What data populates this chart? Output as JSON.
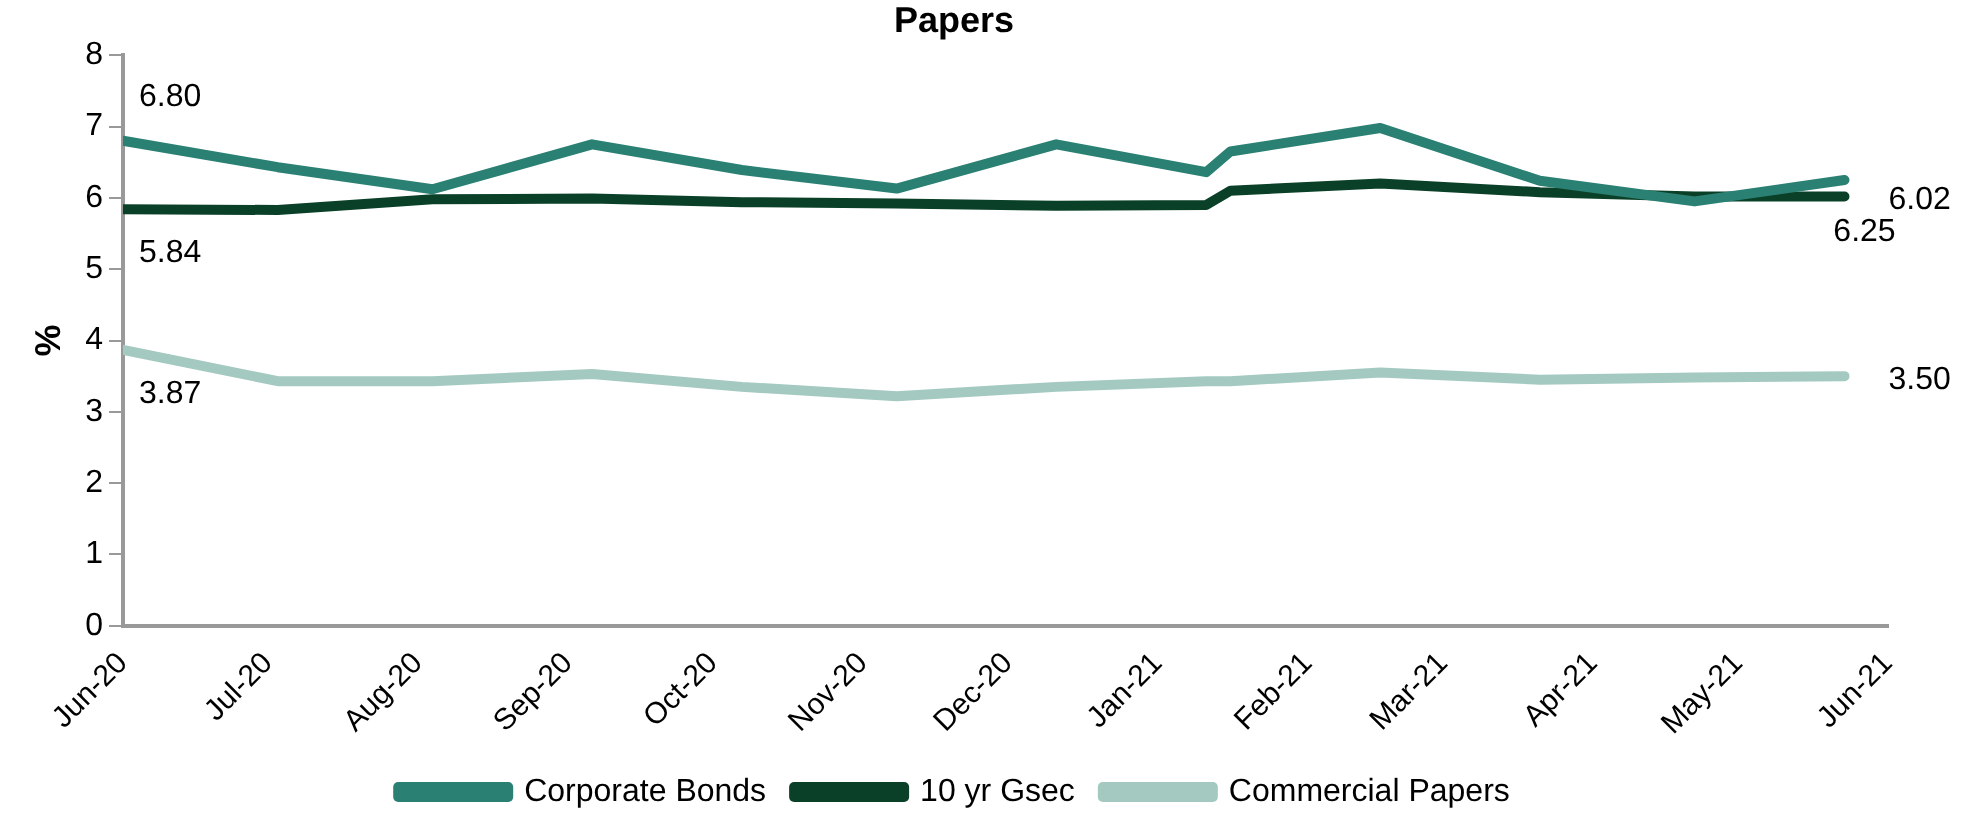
{
  "chart_data": {
    "type": "line",
    "title": "Papers",
    "ylabel": "%",
    "xlim": [
      "2020-06-01",
      "2021-06-01"
    ],
    "xticks": [
      {
        "value": "2020-06-01",
        "label": "Jun-20"
      },
      {
        "value": "2020-07-01",
        "label": "Jul-20"
      },
      {
        "value": "2020-08-01",
        "label": "Aug-20"
      },
      {
        "value": "2020-09-01",
        "label": "Sep-20"
      },
      {
        "value": "2020-10-01",
        "label": "Oct-20"
      },
      {
        "value": "2020-11-01",
        "label": "Nov-20"
      },
      {
        "value": "2020-12-01",
        "label": "Dec-20"
      },
      {
        "value": "2021-01-01",
        "label": "Jan-21"
      },
      {
        "value": "2021-02-01",
        "label": "Feb-21"
      },
      {
        "value": "2021-03-01",
        "label": "Mar-21"
      },
      {
        "value": "2021-04-01",
        "label": "Apr-21"
      },
      {
        "value": "2021-05-01",
        "label": "May-21"
      },
      {
        "value": "2021-06-01",
        "label": "Jun-21"
      }
    ],
    "x": [
      "2020-06-01",
      "2020-07-03",
      "2020-08-04",
      "2020-09-06",
      "2020-10-07",
      "2020-11-08",
      "2020-12-11",
      "2021-01-11",
      "2021-01-16",
      "2021-02-16",
      "2021-03-21",
      "2021-04-22",
      "2021-05-23"
    ],
    "ylim": [
      0,
      8
    ],
    "yticks": [
      0,
      1,
      2,
      3,
      4,
      5,
      6,
      7,
      8
    ],
    "grid": false,
    "legend": "bottom",
    "marker": "none",
    "line_style": "solid",
    "series": [
      {
        "name": "Corporate Bonds",
        "color": "#2a8073",
        "values": [
          6.8,
          6.43,
          6.12,
          6.75,
          6.39,
          6.13,
          6.75,
          6.36,
          6.65,
          6.98,
          6.24,
          5.95,
          6.25
        ],
        "value_labels": [
          "6.80",
          null,
          null,
          null,
          null,
          null,
          null,
          null,
          null,
          null,
          null,
          null,
          "6.25"
        ]
      },
      {
        "name": "10 yr Gsec",
        "color": "#0a4028",
        "values": [
          5.84,
          5.83,
          5.98,
          5.99,
          5.94,
          5.92,
          5.89,
          5.9,
          6.1,
          6.2,
          6.08,
          6.02,
          6.02
        ],
        "value_labels": [
          "5.84",
          null,
          null,
          null,
          null,
          null,
          null,
          null,
          null,
          null,
          null,
          null,
          "6.02"
        ]
      },
      {
        "name": "Commercial Papers",
        "color": "#a3c9c0",
        "values": [
          3.87,
          3.43,
          3.43,
          3.53,
          3.35,
          3.22,
          3.35,
          3.43,
          3.43,
          3.55,
          3.45,
          3.48,
          3.5
        ],
        "value_labels": [
          "3.87",
          null,
          null,
          null,
          null,
          null,
          null,
          null,
          null,
          null,
          null,
          null,
          "3.50"
        ]
      }
    ]
  }
}
